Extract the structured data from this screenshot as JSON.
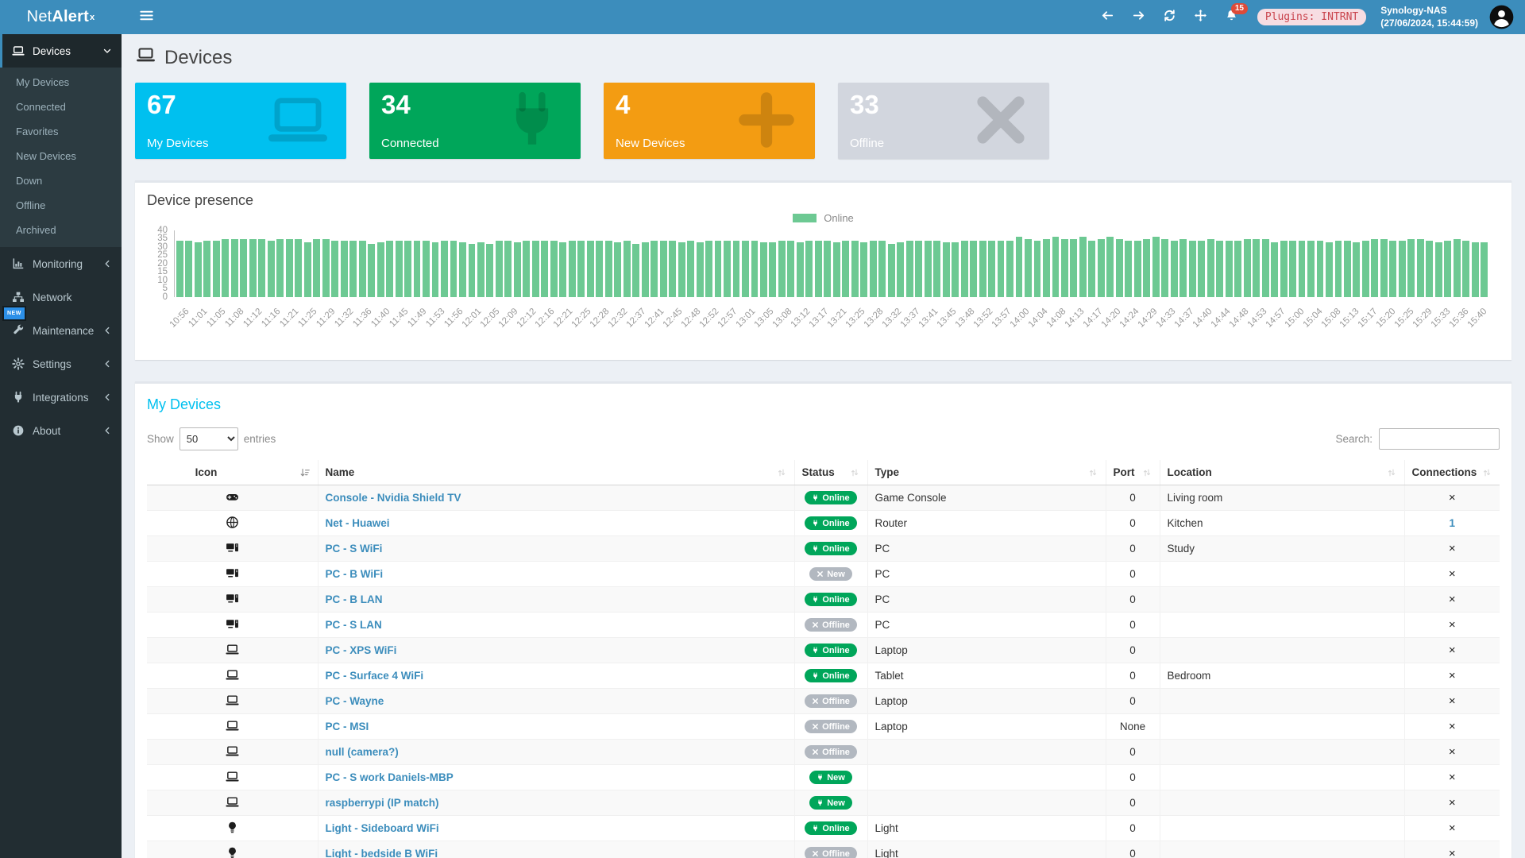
{
  "navbar": {
    "brand_light": "Net",
    "brand_bold": "Alert",
    "brand_sup": "x",
    "notification_count": "15",
    "plugins_badge": "Plugins: INTRNT",
    "host_name": "Synology-NAS",
    "host_time": "(27/06/2024, 15:44:59)"
  },
  "sidebar": {
    "new_badge": "NEW",
    "items": [
      {
        "label": "Devices",
        "icon": "laptop",
        "active": true,
        "chevron": "down",
        "children": [
          "My Devices",
          "Connected",
          "Favorites",
          "New Devices",
          "Down",
          "Offline",
          "Archived"
        ]
      },
      {
        "label": "Monitoring",
        "icon": "chart",
        "chevron": "left"
      },
      {
        "label": "Network",
        "icon": "sitemap",
        "chevron": ""
      },
      {
        "label": "Maintenance",
        "icon": "wrench",
        "chevron": "left"
      },
      {
        "label": "Settings",
        "icon": "gear",
        "chevron": "left"
      },
      {
        "label": "Integrations",
        "icon": "plug",
        "chevron": "left"
      },
      {
        "label": "About",
        "icon": "info",
        "chevron": "left"
      }
    ]
  },
  "page": {
    "title": "Devices"
  },
  "summary_cards": [
    {
      "value": "67",
      "label": "My Devices",
      "color": "#00c0ef",
      "icon": "laptop"
    },
    {
      "value": "34",
      "label": "Connected",
      "color": "#00a65a",
      "icon": "plug"
    },
    {
      "value": "4",
      "label": "New Devices",
      "color": "#f39c12",
      "icon": "plus"
    },
    {
      "value": "33",
      "label": "Offline",
      "color": "#d2d6de",
      "icon": "x"
    }
  ],
  "chart_data": {
    "type": "bar",
    "title": "Device presence",
    "legend": [
      {
        "label": "Online",
        "color": "#6dc993"
      }
    ],
    "ylim": [
      0,
      40
    ],
    "yticks": [
      0,
      5,
      10,
      15,
      20,
      25,
      30,
      35,
      40
    ],
    "bars_per_label": 2,
    "x_labels": [
      "10:56",
      "11:01",
      "11:05",
      "11:08",
      "11:12",
      "11:16",
      "11:21",
      "11:25",
      "11:29",
      "11:32",
      "11:36",
      "11:40",
      "11:45",
      "11:49",
      "11:53",
      "11:56",
      "12:01",
      "12:05",
      "12:09",
      "12:12",
      "12:16",
      "12:21",
      "12:25",
      "12:28",
      "12:32",
      "12:37",
      "12:41",
      "12:45",
      "12:48",
      "12:52",
      "12:57",
      "13:01",
      "13:05",
      "13:08",
      "13:12",
      "13:17",
      "13:21",
      "13:25",
      "13:28",
      "13:32",
      "13:37",
      "13:41",
      "13:45",
      "13:48",
      "13:52",
      "13:57",
      "14:00",
      "14:04",
      "14:08",
      "14:13",
      "14:17",
      "14:20",
      "14:24",
      "14:29",
      "14:33",
      "14:37",
      "14:40",
      "14:44",
      "14:48",
      "14:53",
      "14:57",
      "15:00",
      "15:04",
      "15:08",
      "15:13",
      "15:17",
      "15:20",
      "15:25",
      "15:29",
      "15:33",
      "15:36",
      "15:40"
    ],
    "values": [
      34,
      34,
      33,
      34,
      34,
      35,
      35,
      35,
      35,
      35,
      34,
      35,
      35,
      35,
      33,
      35,
      35,
      34,
      34,
      34,
      34,
      32,
      33,
      34,
      34,
      34,
      34,
      34,
      33,
      34,
      34,
      33,
      32,
      33,
      32,
      34,
      34,
      33,
      34,
      34,
      34,
      34,
      33,
      34,
      34,
      34,
      34,
      34,
      33,
      34,
      32,
      33,
      34,
      34,
      34,
      33,
      34,
      33,
      34,
      34,
      34,
      34,
      34,
      34,
      33,
      33,
      34,
      34,
      33,
      34,
      34,
      34,
      33,
      34,
      34,
      33,
      34,
      34,
      32,
      33,
      34,
      34,
      34,
      34,
      33,
      33,
      34,
      34,
      34,
      34,
      34,
      34,
      36,
      35,
      34,
      35,
      36,
      35,
      35,
      36,
      34,
      35,
      36,
      35,
      34,
      34,
      35,
      36,
      35,
      34,
      35,
      34,
      34,
      35,
      34,
      34,
      34,
      35,
      35,
      35,
      33,
      34,
      34,
      34,
      34,
      34,
      33,
      34,
      34,
      33,
      34,
      35,
      35,
      34,
      34,
      35,
      35,
      34,
      33,
      34,
      35,
      34,
      33,
      33
    ]
  },
  "devices_table": {
    "title": "My Devices",
    "show_label": "Show",
    "entries_label": "entries",
    "page_length": "50",
    "search_label": "Search:",
    "search_value": "",
    "columns": [
      "Icon",
      "Name",
      "Status",
      "Type",
      "Port",
      "Location",
      "Connections"
    ],
    "rows": [
      {
        "icon": "gamepad",
        "name": "Console - Nvidia Shield TV",
        "status": "Online",
        "status_tone": "green",
        "status_icon": "plug",
        "type": "Game Console",
        "port": "0",
        "location": "Living room",
        "connections": "×",
        "connections_link": false
      },
      {
        "icon": "globe",
        "name": "Net - Huawei",
        "status": "Online",
        "status_tone": "green",
        "status_icon": "plug",
        "type": "Router",
        "port": "0",
        "location": "Kitchen",
        "connections": "1",
        "connections_link": true
      },
      {
        "icon": "computer",
        "name": "PC - S WiFi",
        "status": "Online",
        "status_tone": "green",
        "status_icon": "plug",
        "type": "PC",
        "port": "0",
        "location": "Study",
        "connections": "×",
        "connections_link": false
      },
      {
        "icon": "computer",
        "name": "PC - B WiFi",
        "status": "New",
        "status_tone": "gray",
        "status_icon": "x",
        "type": "PC",
        "port": "0",
        "location": "",
        "connections": "×",
        "connections_link": false
      },
      {
        "icon": "computer",
        "name": "PC - B LAN",
        "status": "Online",
        "status_tone": "green",
        "status_icon": "plug",
        "type": "PC",
        "port": "0",
        "location": "",
        "connections": "×",
        "connections_link": false
      },
      {
        "icon": "computer",
        "name": "PC - S LAN",
        "status": "Offline",
        "status_tone": "gray",
        "status_icon": "x",
        "type": "PC",
        "port": "0",
        "location": "",
        "connections": "×",
        "connections_link": false
      },
      {
        "icon": "laptop",
        "name": "PC - XPS WiFi",
        "status": "Online",
        "status_tone": "green",
        "status_icon": "plug",
        "type": "Laptop",
        "port": "0",
        "location": "",
        "connections": "×",
        "connections_link": false
      },
      {
        "icon": "laptop",
        "name": "PC - Surface 4 WiFi",
        "status": "Online",
        "status_tone": "green",
        "status_icon": "plug",
        "type": "Tablet",
        "port": "0",
        "location": "Bedroom",
        "connections": "×",
        "connections_link": false
      },
      {
        "icon": "laptop",
        "name": "PC - Wayne",
        "status": "Offline",
        "status_tone": "gray",
        "status_icon": "x",
        "type": "Laptop",
        "port": "0",
        "location": "",
        "connections": "×",
        "connections_link": false
      },
      {
        "icon": "laptop",
        "name": "PC - MSI",
        "status": "Offline",
        "status_tone": "gray",
        "status_icon": "x",
        "type": "Laptop",
        "port": "None",
        "location": "",
        "connections": "×",
        "connections_link": false
      },
      {
        "icon": "laptop",
        "name": "null (camera?)",
        "status": "Offline",
        "status_tone": "gray",
        "status_icon": "x",
        "type": "",
        "port": "0",
        "location": "",
        "connections": "×",
        "connections_link": false
      },
      {
        "icon": "laptop",
        "name": "PC - S work Daniels-MBP",
        "status": "New",
        "status_tone": "green",
        "status_icon": "plug",
        "type": "",
        "port": "0",
        "location": "",
        "connections": "×",
        "connections_link": false
      },
      {
        "icon": "laptop",
        "name": "raspberrypi (IP match)",
        "status": "New",
        "status_tone": "green",
        "status_icon": "plug",
        "type": "",
        "port": "0",
        "location": "",
        "connections": "×",
        "connections_link": false
      },
      {
        "icon": "lightbulb",
        "name": "Light - Sideboard WiFi",
        "status": "Online",
        "status_tone": "green",
        "status_icon": "plug",
        "type": "Light",
        "port": "0",
        "location": "",
        "connections": "×",
        "connections_link": false
      },
      {
        "icon": "lightbulb",
        "name": "Light - bedside B WiFi",
        "status": "Offline",
        "status_tone": "gray",
        "status_icon": "x",
        "type": "Light",
        "port": "0",
        "location": "",
        "connections": "×",
        "connections_link": false
      }
    ]
  }
}
